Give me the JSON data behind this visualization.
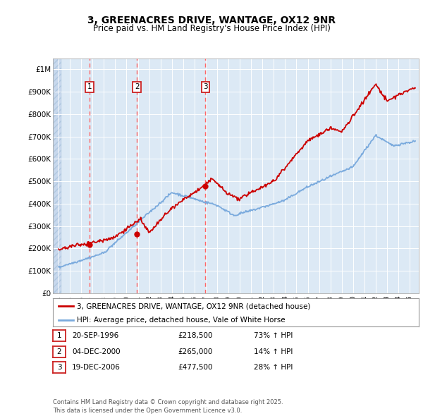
{
  "title": "3, GREENACRES DRIVE, WANTAGE, OX12 9NR",
  "subtitle": "Price paid vs. HM Land Registry's House Price Index (HPI)",
  "background_color": "#dce9f5",
  "red_line_color": "#cc0000",
  "blue_line_color": "#7aaadd",
  "dashed_line_color": "#ff6666",
  "purchases": [
    {
      "date_num": 1996.72,
      "price": 218500,
      "label": "1"
    },
    {
      "date_num": 2000.92,
      "price": 265000,
      "label": "2"
    },
    {
      "date_num": 2006.97,
      "price": 477500,
      "label": "3"
    }
  ],
  "legend_entries": [
    "3, GREENACRES DRIVE, WANTAGE, OX12 9NR (detached house)",
    "HPI: Average price, detached house, Vale of White Horse"
  ],
  "table_rows": [
    [
      "1",
      "20-SEP-1996",
      "£218,500",
      "73% ↑ HPI"
    ],
    [
      "2",
      "04-DEC-2000",
      "£265,000",
      "14% ↑ HPI"
    ],
    [
      "3",
      "19-DEC-2006",
      "£477,500",
      "28% ↑ HPI"
    ]
  ],
  "footer": "Contains HM Land Registry data © Crown copyright and database right 2025.\nThis data is licensed under the Open Government Licence v3.0.",
  "ylim": [
    0,
    1050000
  ],
  "xlim": [
    1993.5,
    2025.8
  ],
  "yticks": [
    0,
    100000,
    200000,
    300000,
    400000,
    500000,
    600000,
    700000,
    800000,
    900000,
    1000000
  ],
  "ytick_labels": [
    "£0",
    "£100K",
    "£200K",
    "£300K",
    "£400K",
    "£500K",
    "£600K",
    "£700K",
    "£800K",
    "£900K",
    "£1M"
  ]
}
